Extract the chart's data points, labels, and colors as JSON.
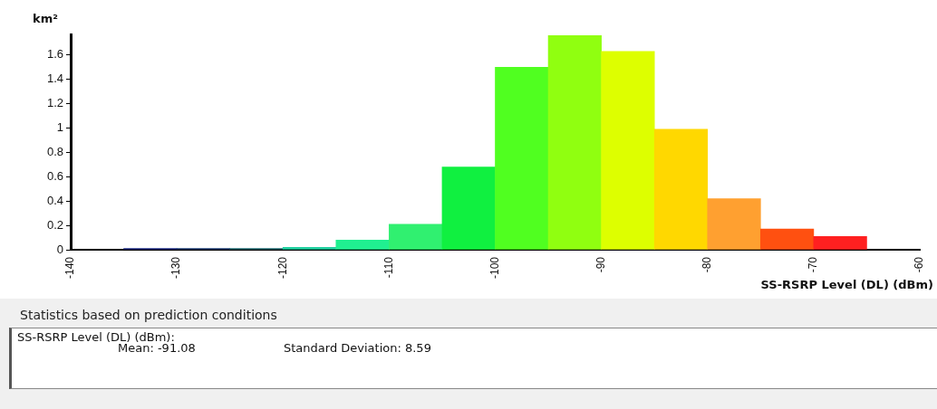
{
  "chart_data": {
    "type": "histogram",
    "ylabel": "km²",
    "xlabel": "SS-RSRP Level (DL) (dBm)",
    "bins": [
      -135,
      -130,
      -125,
      -120,
      -115,
      -110,
      -105,
      -100,
      -95,
      -90,
      -85,
      -80,
      -75,
      -70,
      -65
    ],
    "values": [
      0.01,
      0.01,
      0.01,
      0.02,
      0.08,
      0.21,
      0.68,
      1.5,
      1.76,
      1.63,
      0.99,
      0.42,
      0.17,
      0.11
    ],
    "colors": [
      "#1a2a80",
      "#1a3a70",
      "#1f6a70",
      "#20d0a0",
      "#20f090",
      "#30f070",
      "#10f040",
      "#50ff20",
      "#90ff10",
      "#ddff00",
      "#ffd800",
      "#ffa030",
      "#ff5010",
      "#ff2020"
    ],
    "xlim": [
      -140,
      -60
    ],
    "xticks": [
      -140,
      -130,
      -120,
      -110,
      -100,
      -90,
      -80,
      -70,
      -60
    ],
    "ylim": [
      0,
      1.77
    ],
    "yticks": [
      0,
      0.2,
      0.4,
      0.6,
      0.8,
      1,
      1.2,
      1.4,
      1.6
    ],
    "grid": false,
    "legend": false,
    "annotations": [
      "Statistics based on prediction conditions",
      "SS-RSRP Level (DL) (dBm):",
      "Mean: -91.08",
      "Standard Deviation: 8.59"
    ]
  }
}
